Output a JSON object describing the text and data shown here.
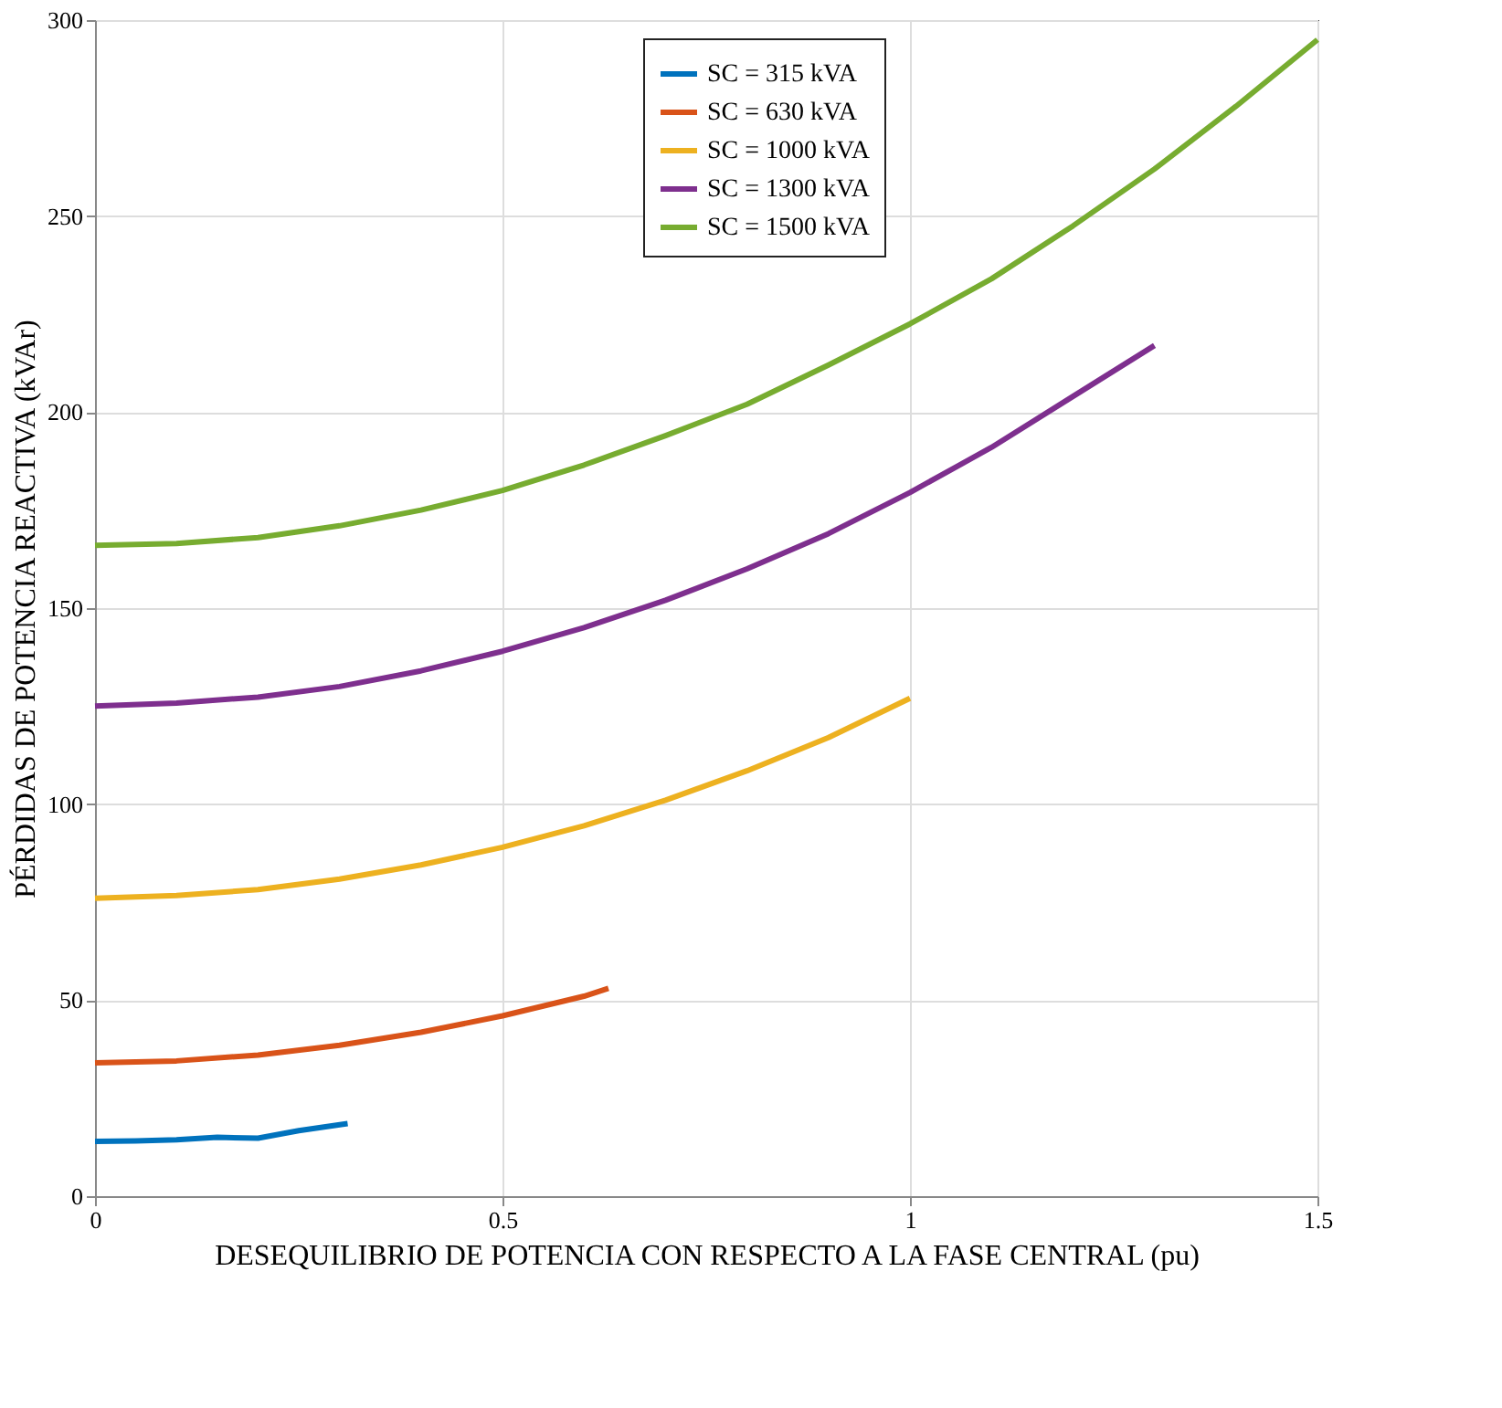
{
  "chart_data": {
    "type": "line",
    "xlabel": "DESEQUILIBRIO DE POTENCIA CON RESPECTO A LA FASE CENTRAL (pu)",
    "ylabel": "PÉRDIDAS DE POTENCIA REACTIVA  (kVAr)",
    "xlim": [
      0,
      1.5
    ],
    "ylim": [
      0,
      300
    ],
    "xticks": [
      0,
      0.5,
      1,
      1.5
    ],
    "yticks": [
      0,
      50,
      100,
      150,
      200,
      250,
      300
    ],
    "grid": true,
    "legend": "top",
    "line_style": "solid",
    "marker": "none",
    "series": [
      {
        "name": "SC = 315 kVA",
        "color": "#0072bd",
        "x": [
          0,
          0.05,
          0.1,
          0.15,
          0.2,
          0.25,
          0.31
        ],
        "values": [
          14,
          14.1,
          14.4,
          15,
          14.8,
          16.7,
          18.5
        ]
      },
      {
        "name": "SC = 630 kVA",
        "color": "#d95319",
        "x": [
          0,
          0.1,
          0.2,
          0.3,
          0.4,
          0.5,
          0.6,
          0.63
        ],
        "values": [
          34,
          34.5,
          36,
          38.5,
          41.8,
          46,
          51,
          53
        ]
      },
      {
        "name": "SC = 1000 kVA",
        "color": "#edb120",
        "x": [
          0,
          0.1,
          0.2,
          0.3,
          0.4,
          0.5,
          0.6,
          0.7,
          0.8,
          0.9,
          1.0
        ],
        "values": [
          76,
          76.7,
          78.2,
          80.9,
          84.5,
          89,
          94.5,
          101,
          108.5,
          117,
          127
        ]
      },
      {
        "name": "SC = 1300 kVA",
        "color": "#7e2f8e",
        "x": [
          0,
          0.1,
          0.2,
          0.3,
          0.4,
          0.5,
          0.6,
          0.7,
          0.8,
          0.9,
          1.0,
          1.1,
          1.2,
          1.3
        ],
        "values": [
          125,
          125.8,
          127.3,
          130,
          134,
          139,
          145,
          152,
          160,
          169,
          179.5,
          191,
          204,
          217
        ]
      },
      {
        "name": "SC = 1500 kVA",
        "color": "#77ac30",
        "x": [
          0,
          0.1,
          0.2,
          0.3,
          0.4,
          0.5,
          0.6,
          0.7,
          0.8,
          0.9,
          1.0,
          1.1,
          1.2,
          1.3,
          1.4,
          1.5
        ],
        "values": [
          166,
          166.5,
          168,
          171,
          175,
          180,
          186.5,
          194,
          202,
          212,
          222.5,
          234,
          247.5,
          262,
          278,
          295
        ]
      }
    ]
  }
}
